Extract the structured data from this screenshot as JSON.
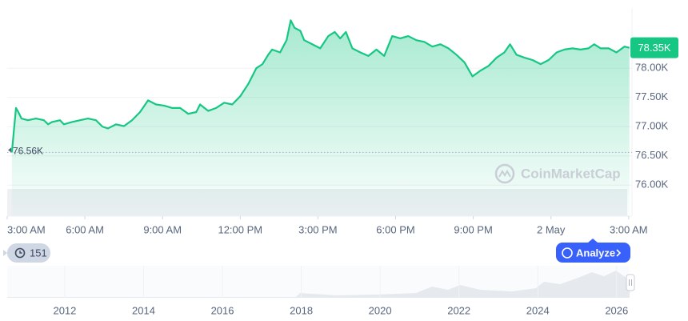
{
  "chart_data": {
    "type": "line",
    "color": "#16c784",
    "x": [
      3.18,
      3.34,
      3.43,
      3.55,
      3.8,
      4.11,
      4.42,
      4.58,
      4.73,
      5.04,
      5.19,
      5.5,
      5.81,
      6.12,
      6.43,
      6.68,
      6.89,
      7.2,
      7.51,
      7.82,
      8.13,
      8.44,
      8.75,
      9.06,
      9.37,
      9.68,
      9.99,
      10.3,
      10.45,
      10.76,
      11.07,
      11.38,
      11.69,
      12.0,
      12.31,
      12.62,
      12.86,
      13.08,
      13.23,
      13.54,
      13.79,
      13.95,
      14.1,
      14.32,
      14.47,
      14.78,
      15.09,
      15.4,
      15.65,
      15.86,
      16.08,
      16.33,
      16.64,
      16.95,
      17.26,
      17.56,
      17.87,
      18.18,
      18.49,
      18.8,
      19.11,
      19.42,
      19.73,
      20.04,
      20.35,
      20.66,
      20.97,
      21.28,
      21.59,
      21.9,
      22.2,
      22.42,
      22.67,
      22.98,
      23.29,
      23.6,
      23.91,
      24.22,
      24.52,
      24.83,
      25.14,
      25.45,
      25.67,
      25.92,
      26.23,
      26.53,
      26.84,
      27.03
    ],
    "values": [
      76560,
      77320,
      77250,
      77140,
      77110,
      77140,
      77110,
      77040,
      77080,
      77110,
      77040,
      77080,
      77110,
      77140,
      77110,
      77000,
      76970,
      77040,
      77010,
      77110,
      77250,
      77450,
      77380,
      77360,
      77320,
      77320,
      77220,
      77250,
      77380,
      77270,
      77320,
      77410,
      77380,
      77520,
      77730,
      78000,
      78070,
      78230,
      78320,
      78270,
      78480,
      78820,
      78690,
      78640,
      78480,
      78410,
      78340,
      78550,
      78620,
      78510,
      78620,
      78340,
      78270,
      78210,
      78320,
      78210,
      78550,
      78510,
      78550,
      78480,
      78450,
      78370,
      78410,
      78340,
      78230,
      78100,
      77860,
      77960,
      78040,
      78180,
      78270,
      78410,
      78230,
      78180,
      78140,
      78070,
      78140,
      78270,
      78320,
      78340,
      78320,
      78340,
      78410,
      78340,
      78340,
      78270,
      78370,
      78350
    ],
    "xlim": [
      3,
      27.13
    ],
    "ylim": [
      75470,
      79030
    ],
    "yticks": [
      {
        "value": 76000,
        "label": "76.00K"
      },
      {
        "value": 76500,
        "label": "76.50K"
      },
      {
        "value": 77000,
        "label": "77.00K"
      },
      {
        "value": 77500,
        "label": "77.50K"
      },
      {
        "value": 78000,
        "label": "78.00K"
      }
    ],
    "xticks": [
      {
        "value": 3,
        "label": "3:00 AM"
      },
      {
        "value": 6,
        "label": "6:00 AM"
      },
      {
        "value": 9,
        "label": "9:00 AM"
      },
      {
        "value": 12,
        "label": "12:00 PM"
      },
      {
        "value": 15,
        "label": "3:00 PM"
      },
      {
        "value": 18,
        "label": "6:00 PM"
      },
      {
        "value": 21,
        "label": "9:00 PM"
      },
      {
        "value": 24,
        "label": "2 May"
      },
      {
        "value": 27,
        "label": "3:00 AM"
      }
    ],
    "grid": true,
    "annotations": [
      {
        "value": 78350,
        "label": "78.35K"
      },
      {
        "value": 76560,
        "label": "76.56K"
      }
    ]
  },
  "navigator": {
    "xlim": [
      2010.54,
      2026.39
    ],
    "xticks": [
      2012,
      2014,
      2016,
      2018,
      2020,
      2022,
      2024,
      2026
    ]
  },
  "watermark": "CoinMarketCap",
  "badge": "151",
  "button": "Analyze"
}
